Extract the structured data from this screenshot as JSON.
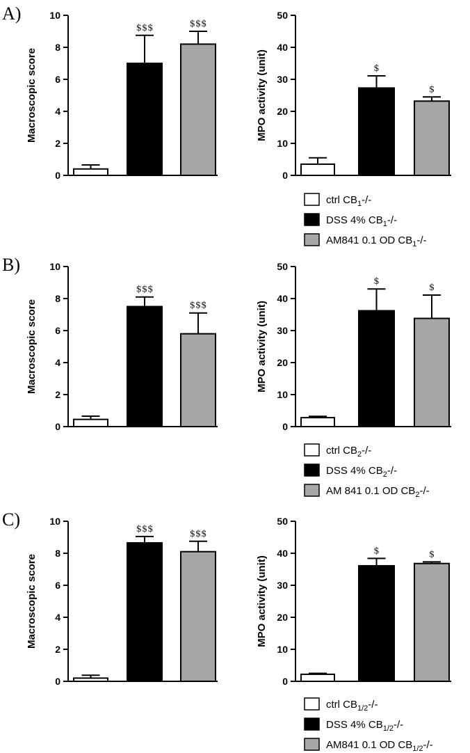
{
  "colors": {
    "ctrl": "#ffffff",
    "dss": "#000000",
    "am": "#a6a6a6"
  },
  "panels": [
    {
      "label": "A)",
      "legend": [
        {
          "pre": "ctrl CB",
          "sub": "1",
          "post": "-/-"
        },
        {
          "pre": "DSS 4% CB",
          "sub": "1",
          "post": "-/-"
        },
        {
          "pre": "AM841 0.1 OD CB",
          "sub": "1",
          "post": "-/-"
        }
      ]
    },
    {
      "label": "B)",
      "legend": [
        {
          "pre": "ctrl CB",
          "sub": "2",
          "post": "-/-"
        },
        {
          "pre": "DSS 4% CB",
          "sub": "2",
          "post": "-/-"
        },
        {
          "pre": "AM 841 0.1 OD CB",
          "sub": "2",
          "post": "-/-"
        }
      ]
    },
    {
      "label": "C)",
      "legend": [
        {
          "pre": "ctrl CB",
          "sub": "1/2",
          "post": "-/-"
        },
        {
          "pre": "DSS 4% CB",
          "sub": "1/2",
          "post": "-/-"
        },
        {
          "pre": "AM841 0.1 OD CB",
          "sub": "1/2",
          "post": "-/-"
        }
      ]
    }
  ],
  "chart_data": [
    {
      "type": "bar",
      "panel": "A)",
      "ylabel": "Macroscopic score",
      "ylim": [
        0,
        10
      ],
      "yticks": [
        0,
        2,
        4,
        6,
        8,
        10
      ],
      "values": [
        0.4,
        7.0,
        8.2
      ],
      "errors": [
        0.25,
        1.75,
        0.8
      ],
      "annotations": [
        "",
        "$$$",
        "$$$"
      ]
    },
    {
      "type": "bar",
      "panel": "A)",
      "ylabel": "MPO activity (unit)",
      "ylim": [
        0,
        50
      ],
      "yticks": [
        0,
        10,
        20,
        30,
        40,
        50
      ],
      "values": [
        3.5,
        27.3,
        23.2
      ],
      "errors": [
        2.0,
        3.8,
        1.3
      ],
      "annotations": [
        "",
        "$",
        "$"
      ]
    },
    {
      "type": "bar",
      "panel": "B)",
      "ylabel": "Macroscopic score",
      "ylim": [
        0,
        10
      ],
      "yticks": [
        0,
        2,
        4,
        6,
        8,
        10
      ],
      "values": [
        0.45,
        7.5,
        5.8
      ],
      "errors": [
        0.2,
        0.6,
        1.3
      ],
      "annotations": [
        "",
        "$$$",
        "$$$"
      ]
    },
    {
      "type": "bar",
      "panel": "B)",
      "ylabel": "MPO activity (unit)",
      "ylim": [
        0,
        50
      ],
      "yticks": [
        0,
        10,
        20,
        30,
        40,
        50
      ],
      "values": [
        2.8,
        36.2,
        33.8
      ],
      "errors": [
        0.4,
        6.8,
        7.3
      ],
      "annotations": [
        "",
        "$",
        "$"
      ]
    },
    {
      "type": "bar",
      "panel": "C)",
      "ylabel": "Macroscopic score",
      "ylim": [
        0,
        10
      ],
      "yticks": [
        0,
        2,
        4,
        6,
        8,
        10
      ],
      "values": [
        0.2,
        8.65,
        8.1
      ],
      "errors": [
        0.18,
        0.4,
        0.65
      ],
      "annotations": [
        "",
        "$$$",
        "$$$"
      ]
    },
    {
      "type": "bar",
      "panel": "C)",
      "ylabel": "MPO activity (unit)",
      "ylim": [
        0,
        50
      ],
      "yticks": [
        0,
        10,
        20,
        30,
        40,
        50
      ],
      "values": [
        2.2,
        36.1,
        36.8
      ],
      "errors": [
        0.3,
        2.3,
        0.5
      ],
      "annotations": [
        "",
        "$",
        "$"
      ]
    }
  ]
}
